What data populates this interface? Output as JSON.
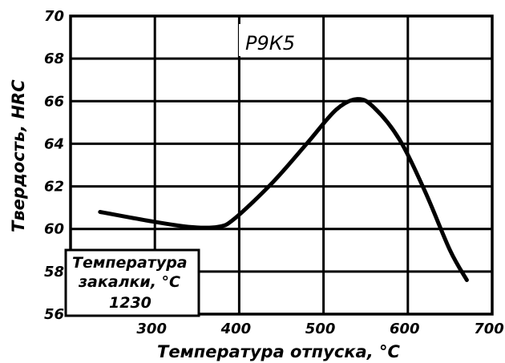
{
  "chart_data": {
    "type": "line",
    "title": "Р9К5",
    "xlabel": "Температура отпуска, °С",
    "ylabel": "Твердость, HRC",
    "xlim": [
      200,
      700
    ],
    "ylim": [
      56,
      70
    ],
    "x_ticks": [
      "300",
      "400",
      "500",
      "600",
      "700"
    ],
    "y_ticks": [
      "56",
      "58",
      "60",
      "62",
      "64",
      "66",
      "68",
      "70"
    ],
    "grid": true,
    "series": [
      {
        "x": [
          235,
          290,
          340,
          375,
          395,
          440,
          480,
          515,
          540,
          560,
          590,
          620,
          650,
          670
        ],
        "y": [
          60.8,
          60.4,
          60.1,
          60.1,
          60.5,
          62.2,
          64.0,
          65.6,
          66.1,
          65.7,
          64.2,
          61.8,
          59.0,
          57.6
        ]
      }
    ],
    "annotation": {
      "line1": "Температура",
      "line2": "закалки, °С",
      "line3": "1230"
    }
  }
}
